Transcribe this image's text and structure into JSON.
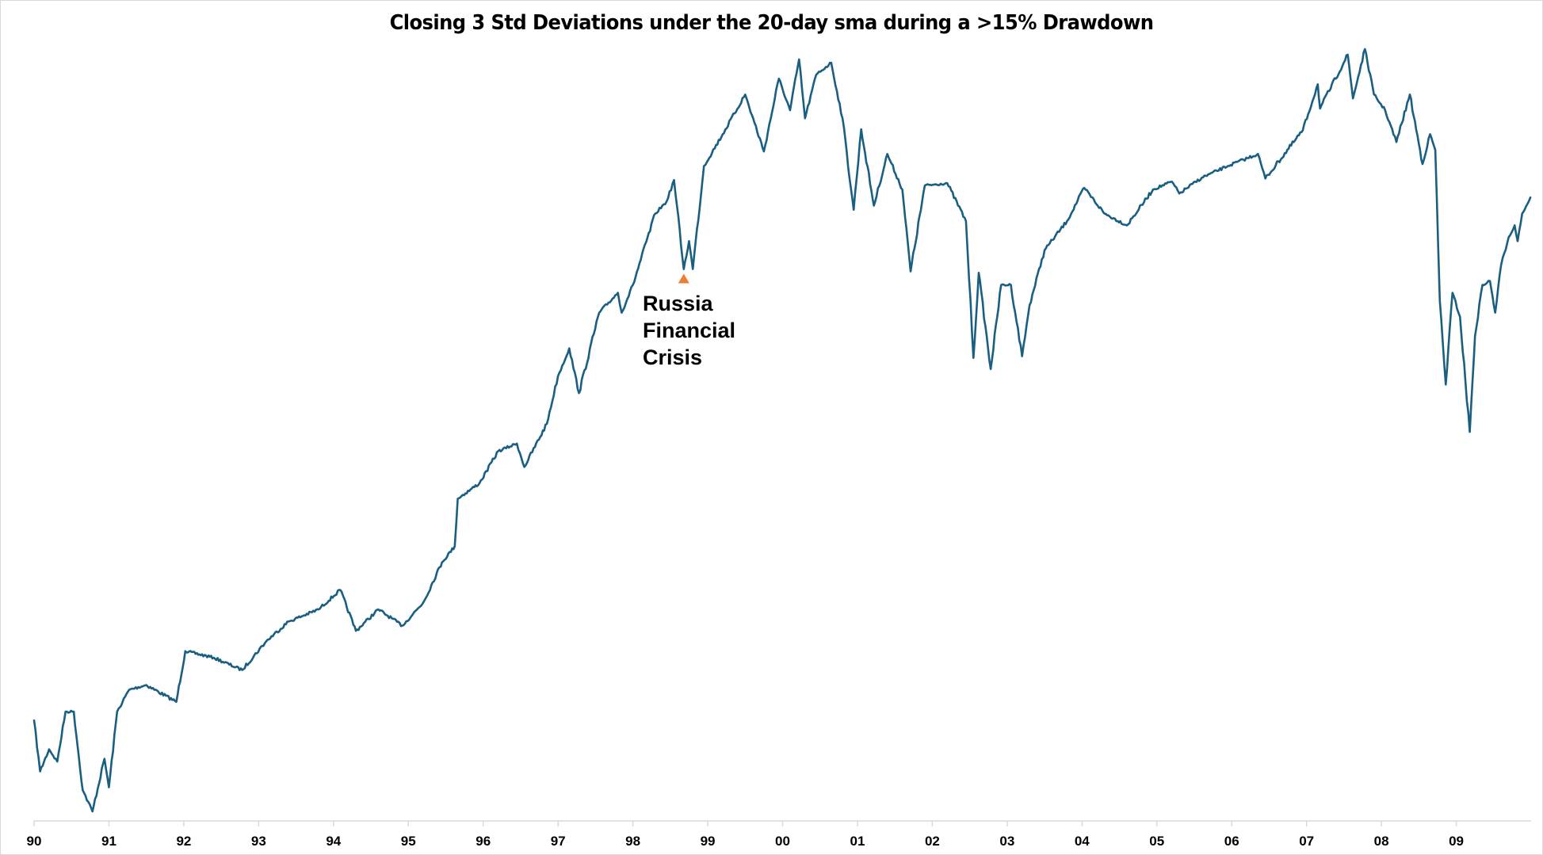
{
  "chart_data": {
    "type": "line",
    "title": "Closing 3 Std Deviations under the 20-day sma during a >15% Drawdown",
    "xlabel": "",
    "ylabel": "",
    "y_scale": "log",
    "y_axis_labels_shown": false,
    "ylim": [
      295,
      1565
    ],
    "xlim": [
      1990.0,
      2010.0
    ],
    "grid": false,
    "legend": "none",
    "x_ticks": [
      {
        "value": 1990,
        "label": "90"
      },
      {
        "value": 1991,
        "label": "91"
      },
      {
        "value": 1992,
        "label": "92"
      },
      {
        "value": 1993,
        "label": "93"
      },
      {
        "value": 1994,
        "label": "94"
      },
      {
        "value": 1995,
        "label": "95"
      },
      {
        "value": 1996,
        "label": "96"
      },
      {
        "value": 1997,
        "label": "97"
      },
      {
        "value": 1998,
        "label": "98"
      },
      {
        "value": 1999,
        "label": "99"
      },
      {
        "value": 2000,
        "label": "00"
      },
      {
        "value": 2001,
        "label": "01"
      },
      {
        "value": 2002,
        "label": "02"
      },
      {
        "value": 2003,
        "label": "03"
      },
      {
        "value": 2004,
        "label": "04"
      },
      {
        "value": 2005,
        "label": "05"
      },
      {
        "value": 2006,
        "label": "06"
      },
      {
        "value": 2007,
        "label": "07"
      },
      {
        "value": 2008,
        "label": "08"
      },
      {
        "value": 2009,
        "label": "09"
      }
    ],
    "series": [
      {
        "name": "Close",
        "color": "#1A5F82",
        "x": [
          1990.0,
          1990.08,
          1990.2,
          1990.31,
          1990.42,
          1990.53,
          1990.65,
          1990.78,
          1990.94,
          1991.0,
          1991.11,
          1991.27,
          1991.5,
          1991.9,
          1992.02,
          1992.4,
          1992.78,
          1993.1,
          1993.4,
          1993.8,
          1994.09,
          1994.3,
          1994.6,
          1994.92,
          1995.2,
          1995.45,
          1995.62,
          1995.66,
          1995.95,
          1996.2,
          1996.45,
          1996.55,
          1996.85,
          1997.0,
          1997.15,
          1997.28,
          1997.55,
          1997.8,
          1997.85,
          1998.0,
          1998.3,
          1998.45,
          1998.55,
          1998.68,
          1998.75,
          1998.8,
          1998.95,
          1999.2,
          1999.5,
          1999.75,
          1999.95,
          2000.1,
          2000.22,
          2000.3,
          2000.45,
          2000.65,
          2000.8,
          2000.95,
          2001.05,
          2001.22,
          2001.4,
          2001.6,
          2001.71,
          2001.9,
          2002.2,
          2002.45,
          2002.55,
          2002.62,
          2002.78,
          2002.92,
          2003.05,
          2003.2,
          2003.3,
          2003.5,
          2003.8,
          2004.03,
          2004.3,
          2004.6,
          2004.95,
          2005.2,
          2005.3,
          2005.6,
          2005.95,
          2006.35,
          2006.45,
          2006.95,
          2007.15,
          2007.18,
          2007.55,
          2007.62,
          2007.78,
          2007.9,
          2008.05,
          2008.2,
          2008.38,
          2008.55,
          2008.65,
          2008.72,
          2008.78,
          2008.86,
          2008.95,
          2009.05,
          2009.18,
          2009.25,
          2009.35,
          2009.45,
          2009.52,
          2009.6,
          2009.7,
          2009.78,
          2009.82,
          2009.88,
          2009.95,
          2009.99
        ],
        "values": [
          360,
          322,
          338,
          329,
          367,
          367,
          309,
          295,
          331,
          311,
          367,
          385,
          389,
          375,
          419,
          413,
          402,
          428,
          447,
          459,
          479,
          438,
          459,
          443,
          466,
          509,
          527,
          585,
          605,
          649,
          660,
          627,
          689,
          765,
          813,
          737,
          879,
          918,
          879,
          934,
          1092,
          1121,
          1175,
          967,
          1028,
          967,
          1212,
          1299,
          1417,
          1251,
          1467,
          1369,
          1530,
          1345,
          1480,
          1519,
          1345,
          1101,
          1313,
          1111,
          1244,
          1151,
          962,
          1161,
          1167,
          1074,
          796,
          959,
          777,
          934,
          934,
          799,
          894,
          1008,
          1074,
          1155,
          1092,
          1064,
          1151,
          1171,
          1141,
          1181,
          1212,
          1244,
          1179,
          1310,
          1449,
          1374,
          1546,
          1405,
          1565,
          1417,
          1369,
          1277,
          1417,
          1217,
          1299,
          1255,
          902,
          751,
          918,
          871,
          677,
          835,
          934,
          942,
          879,
          976,
          1037,
          1064,
          1028,
          1092,
          1115,
          1131
        ]
      }
    ],
    "markers": [
      {
        "label": "Russia Financial Crisis",
        "x": 1998.68,
        "value": 967,
        "shape": "triangle-up",
        "color": "#ED7D31"
      }
    ],
    "annotations": [
      {
        "text_lines": [
          "Russia",
          "Financial",
          "Crisis"
        ],
        "x": 1998.68
      }
    ]
  }
}
